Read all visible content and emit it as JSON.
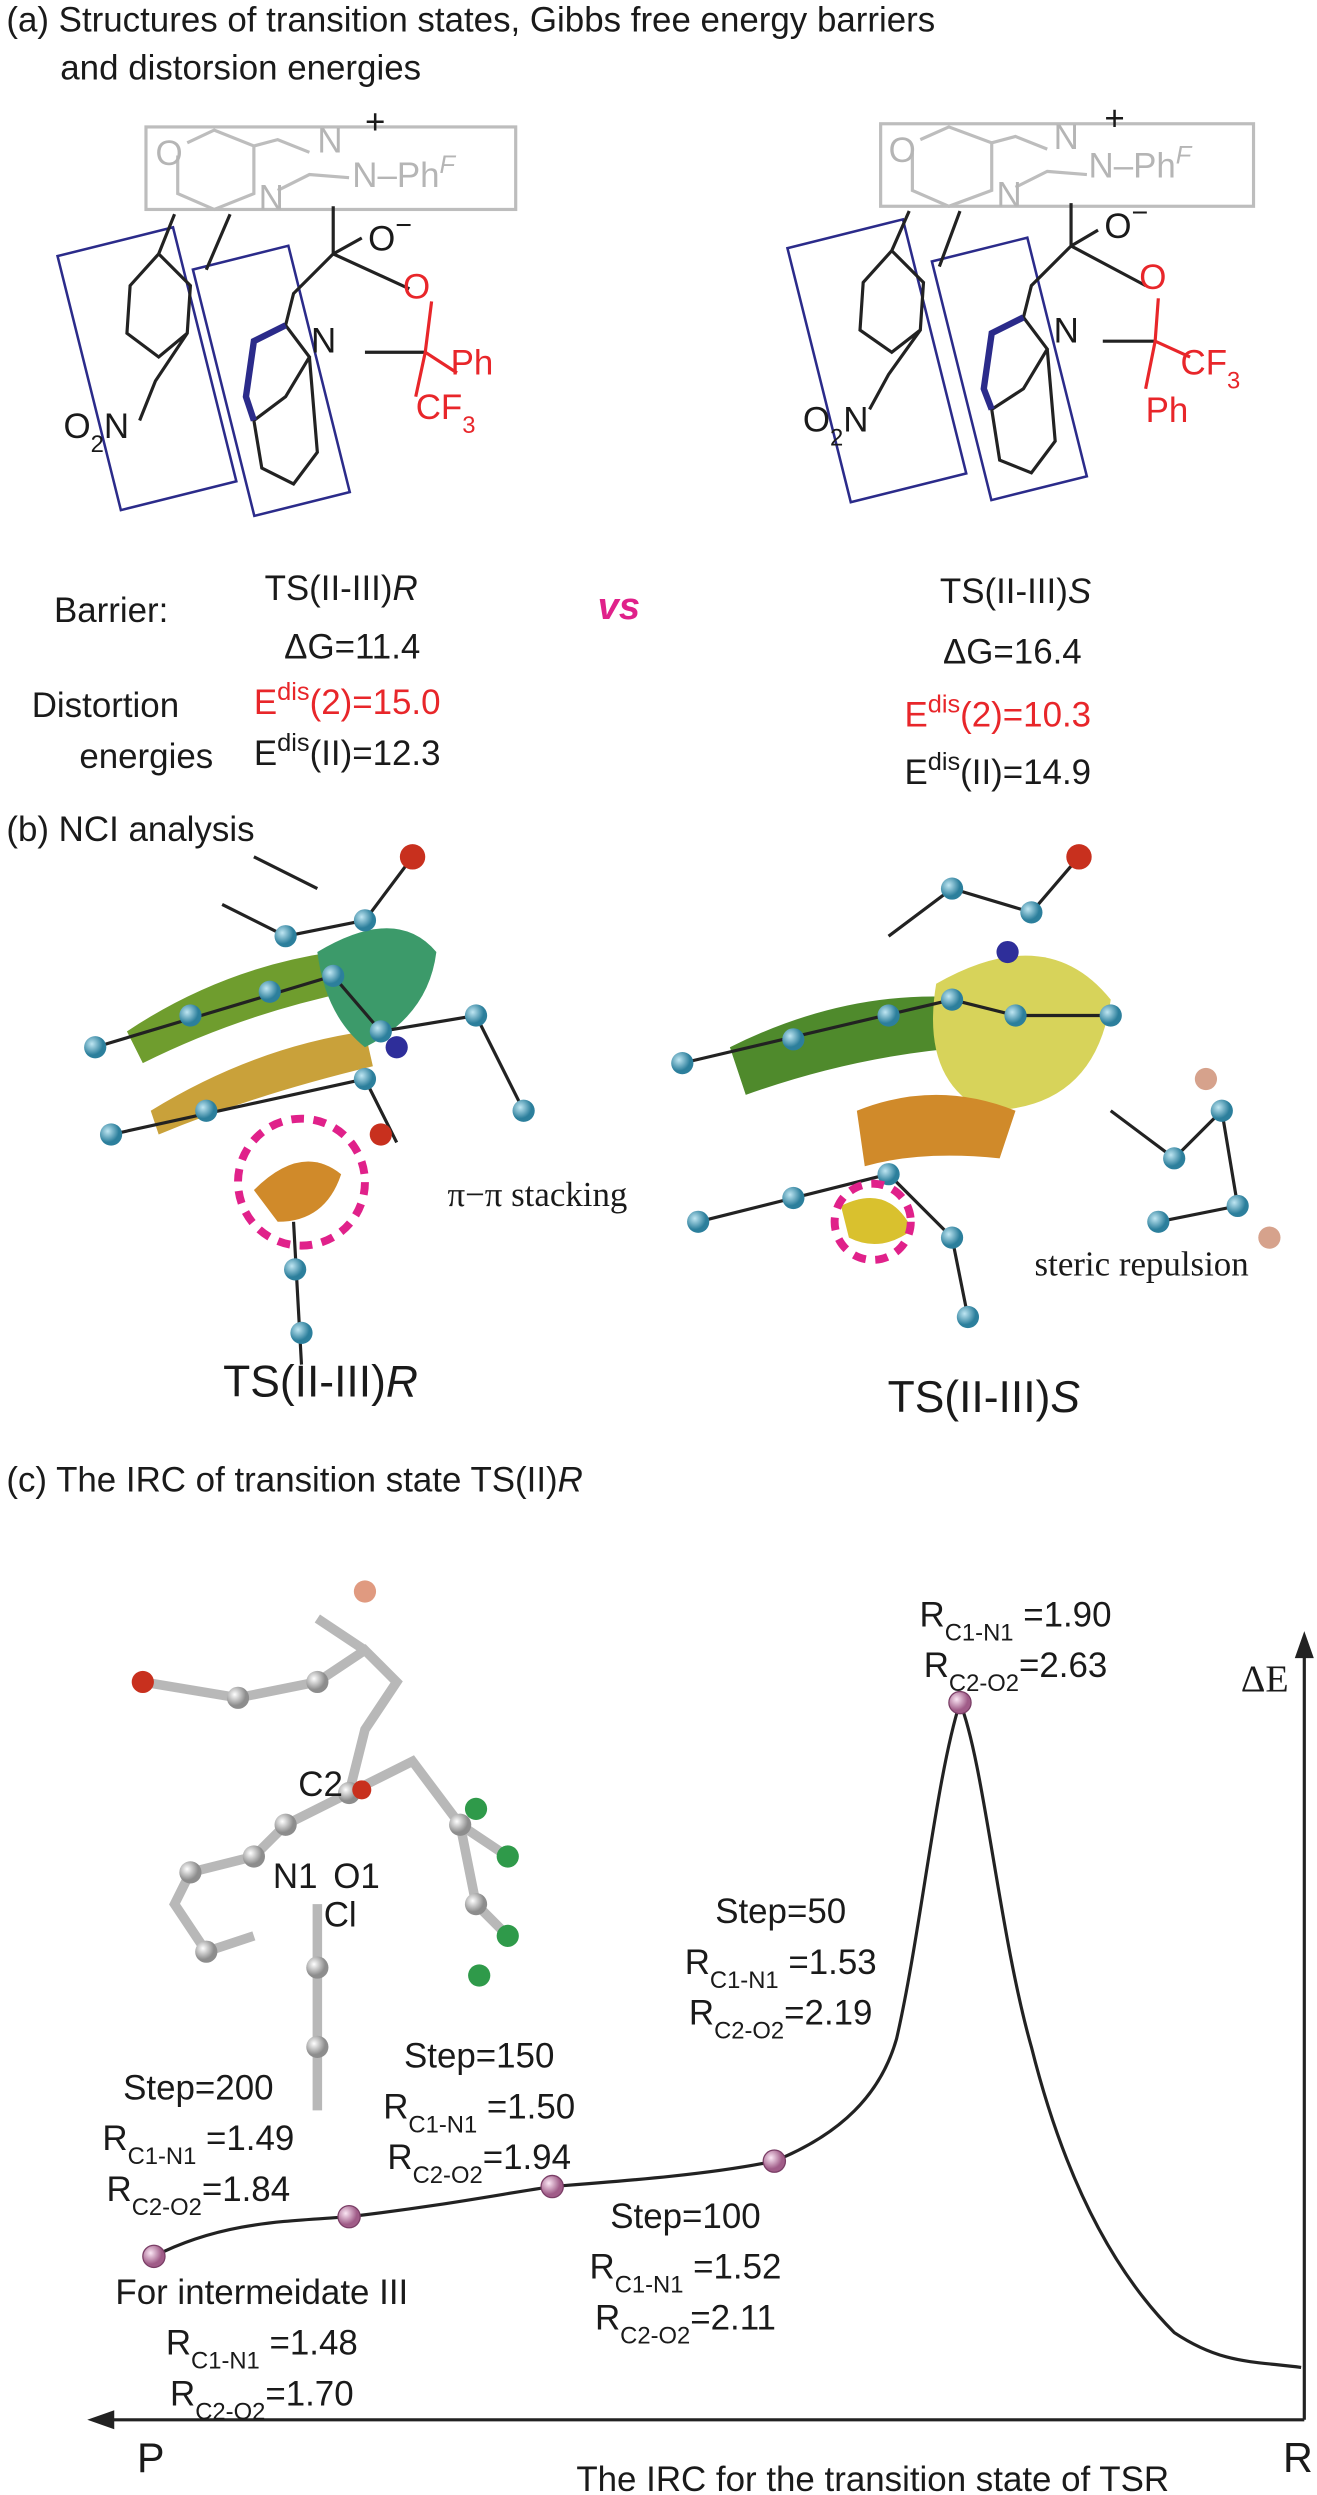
{
  "panel_a": {
    "title": [
      "(a) Structures of transition states, Gibbs free energy barriers",
      "and distorsion energies"
    ],
    "structures": [
      {
        "O_ring": "O",
        "N_a": "N",
        "plus": "+",
        "N_Ph": "N–Ph",
        "F": "F",
        "N_c": "N",
        "O_minus": [
          "O",
          "−"
        ],
        "O_red": "O",
        "N_indole": "N",
        "upper": "Ph",
        "lower": [
          "CF",
          "3"
        ],
        "O2N": [
          "O",
          "2",
          "N"
        ]
      },
      {
        "O_ring": "O",
        "N_a": "N",
        "plus": "+",
        "N_Ph": "N–Ph",
        "F": "F",
        "N_c": "N",
        "O_minus": [
          "O",
          "−"
        ],
        "O_red": "O",
        "N_indole": "N",
        "upper": [
          "CF",
          "3"
        ],
        "lower": "Ph",
        "O2N": [
          "O",
          "2",
          "N"
        ]
      }
    ],
    "barrier_label": "Barrier:",
    "distortion_label": [
      "Distortion",
      "energies"
    ],
    "vs": "vs",
    "ts": [
      {
        "name": "TS(II-III)",
        "config": "R",
        "dG": "ΔG=11.4",
        "edis2": [
          "E",
          "dis",
          "(2)=15.0"
        ],
        "edisII": [
          "E",
          "dis",
          "(II)=12.3"
        ]
      },
      {
        "name": "TS(II-III)",
        "config": "S",
        "dG": "ΔG=16.4",
        "edis2": [
          "E",
          "dis",
          "(2)=10.3"
        ],
        "edisII": [
          "E",
          "dis",
          "(II)=14.9"
        ]
      }
    ]
  },
  "panel_b": {
    "title": "(b) NCI analysis",
    "annotations": [
      "π−π stacking",
      "steric repulsion"
    ],
    "labels": [
      [
        "TS(II-III)",
        "R"
      ],
      [
        "TS(II-III)",
        "S"
      ]
    ]
  },
  "panel_c": {
    "title": [
      "(c) The IRC of transition state TS(II)",
      "R"
    ],
    "axis_y": "ΔE",
    "axis_start": "P",
    "axis_end": "R",
    "axis_caption": "The IRC for the transition state of TSR",
    "atoms": [
      "C2",
      "N1",
      "O1",
      "Cl"
    ],
    "points": [
      {
        "r1": [
          "R",
          "C1-N1",
          " =1.90"
        ],
        "r2": [
          "R",
          "C2-O2",
          "=2.63"
        ]
      },
      {
        "step": "Step=50",
        "r1": [
          "R",
          "C1-N1",
          " =1.53"
        ],
        "r2": [
          "R",
          "C2-O2",
          "=2.19"
        ]
      },
      {
        "step": "Step=100",
        "r1": [
          "R",
          "C1-N1",
          " =1.52"
        ],
        "r2": [
          "R",
          "C2-O2",
          "=2.11"
        ]
      },
      {
        "step": "Step=150",
        "r1": [
          "R",
          "C1-N1",
          " =1.50"
        ],
        "r2": [
          "R",
          "C2-O2",
          "=1.94"
        ]
      },
      {
        "step": "Step=200",
        "r1": [
          "R",
          "C1-N1",
          " =1.49"
        ],
        "r2": [
          "R",
          "C2-O2",
          "=1.84"
        ]
      },
      {
        "step": "For intermeidate III",
        "r1": [
          "R",
          "C1-N1",
          " =1.48"
        ],
        "r2": [
          "R",
          "C2-O2",
          "=1.70"
        ]
      }
    ]
  }
}
